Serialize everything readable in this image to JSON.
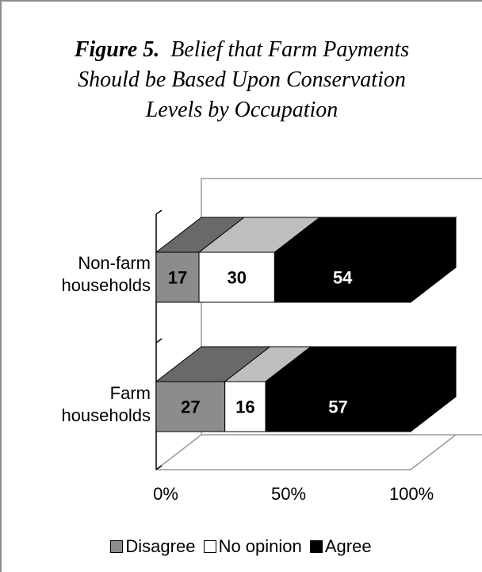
{
  "chart_data": {
    "type": "bar",
    "orientation": "horizontal",
    "stacked": "percent",
    "three_d": true,
    "title_prefix": "Figure 5.",
    "title": "Belief that Farm Payments Should be Based Upon Conservation Levels by Occupation",
    "categories": [
      "Non-farm households",
      "Farm households"
    ],
    "category_lines": [
      [
        "Non-farm",
        "households"
      ],
      [
        "Farm",
        "households"
      ]
    ],
    "series": [
      {
        "name": "Disagree",
        "values": [
          17,
          27
        ],
        "color": "#8c8c8c"
      },
      {
        "name": "No opinion",
        "values": [
          30,
          16
        ],
        "color": "#ffffff"
      },
      {
        "name": "Agree",
        "values": [
          54,
          57
        ],
        "color": "#000000"
      }
    ],
    "x_ticks": [
      "0%",
      "50%",
      "100%"
    ],
    "xlim": [
      0,
      100
    ],
    "legend_position": "bottom",
    "grid": false
  }
}
